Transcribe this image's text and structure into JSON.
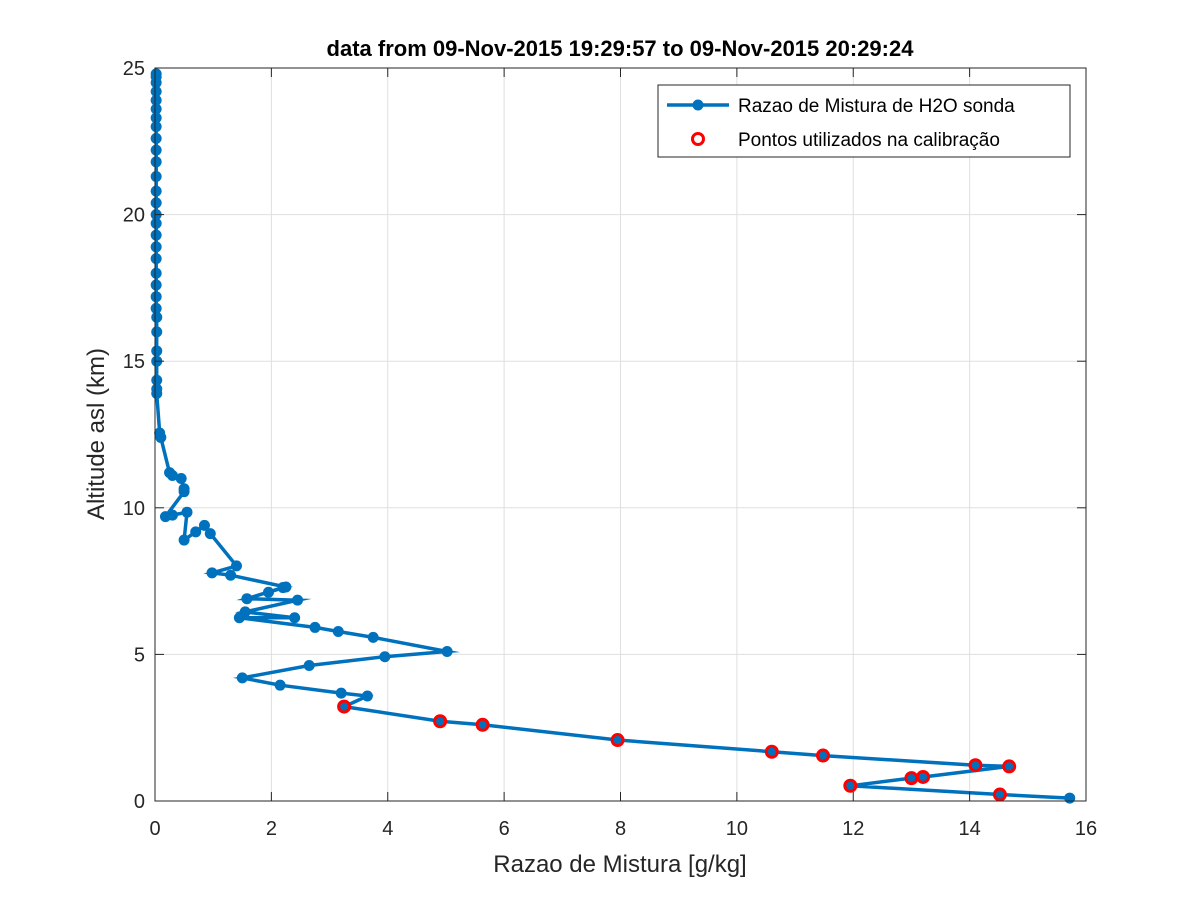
{
  "chart_data": {
    "type": "line",
    "title": "data from 09-Nov-2015 19:29:57 to 09-Nov-2015 20:29:24",
    "xlabel": "Razao de Mistura [g/kg]",
    "ylabel": "Altitude asl (km)",
    "xlim": [
      0,
      16
    ],
    "ylim": [
      0,
      25
    ],
    "xticks": [
      0,
      2,
      4,
      6,
      8,
      10,
      12,
      14,
      16
    ],
    "yticks": [
      0,
      5,
      10,
      15,
      20,
      25
    ],
    "grid": true,
    "legend_position": "top-right",
    "colors": {
      "line": "#0072BD",
      "calibration": "#FF0000",
      "grid": "#DFDFDF",
      "axes": "#262626"
    },
    "series": [
      {
        "name": "Razao de Mistura de H2O sonda",
        "marker": "filled-circle",
        "x": [
          15.72,
          14.52,
          11.95,
          13.0,
          13.2,
          14.68,
          14.1,
          11.48,
          10.6,
          7.95,
          5.63,
          4.9,
          3.25,
          3.65,
          3.2,
          2.15,
          1.5,
          2.65,
          3.95,
          5.02,
          3.75,
          3.15,
          2.75,
          1.45,
          2.4,
          1.55,
          2.45,
          1.58,
          2.2,
          1.95,
          2.25,
          1.3,
          0.98,
          1.4,
          0.95,
          0.85,
          0.7,
          0.5,
          0.55,
          0.3,
          0.18,
          0.5,
          0.5,
          0.45,
          0.3,
          0.25,
          0.1,
          0.08,
          0.03,
          0.03,
          0.03,
          0.03,
          0.03,
          0.03,
          0.03,
          0.02,
          0.02,
          0.02,
          0.02,
          0.02,
          0.02,
          0.02,
          0.02,
          0.02,
          0.02,
          0.02,
          0.02,
          0.02,
          0.02,
          0.02,
          0.02,
          0.02,
          0.02,
          0.02,
          0.02,
          0.02,
          0.02,
          0.02
        ],
        "y": [
          0.1,
          0.22,
          0.52,
          0.78,
          0.82,
          1.18,
          1.22,
          1.55,
          1.68,
          2.08,
          2.6,
          2.72,
          3.22,
          3.58,
          3.68,
          3.95,
          4.2,
          4.62,
          4.92,
          5.1,
          5.58,
          5.78,
          5.92,
          6.25,
          6.25,
          6.45,
          6.85,
          6.9,
          7.28,
          7.12,
          7.3,
          7.7,
          7.78,
          8.02,
          9.12,
          9.4,
          9.18,
          8.9,
          9.85,
          9.75,
          9.7,
          10.55,
          10.65,
          11.0,
          11.1,
          11.2,
          12.4,
          12.55,
          13.9,
          14.05,
          14.35,
          15.0,
          15.35,
          16.0,
          16.5,
          16.8,
          17.2,
          17.6,
          18.0,
          18.5,
          18.9,
          19.3,
          19.7,
          20.0,
          20.4,
          20.8,
          21.3,
          21.8,
          22.2,
          22.6,
          23.0,
          23.3,
          23.6,
          23.9,
          24.2,
          24.5,
          24.7,
          24.8
        ]
      },
      {
        "name": "Pontos utilizados na calibração",
        "marker": "open-circle",
        "x": [
          3.25,
          4.9,
          5.63,
          7.95,
          10.6,
          11.48,
          14.1,
          14.68,
          13.0,
          13.2,
          11.95,
          14.52
        ],
        "y": [
          3.22,
          2.72,
          2.6,
          2.08,
          1.68,
          1.55,
          1.22,
          1.18,
          0.78,
          0.82,
          0.52,
          0.22
        ]
      }
    ]
  }
}
